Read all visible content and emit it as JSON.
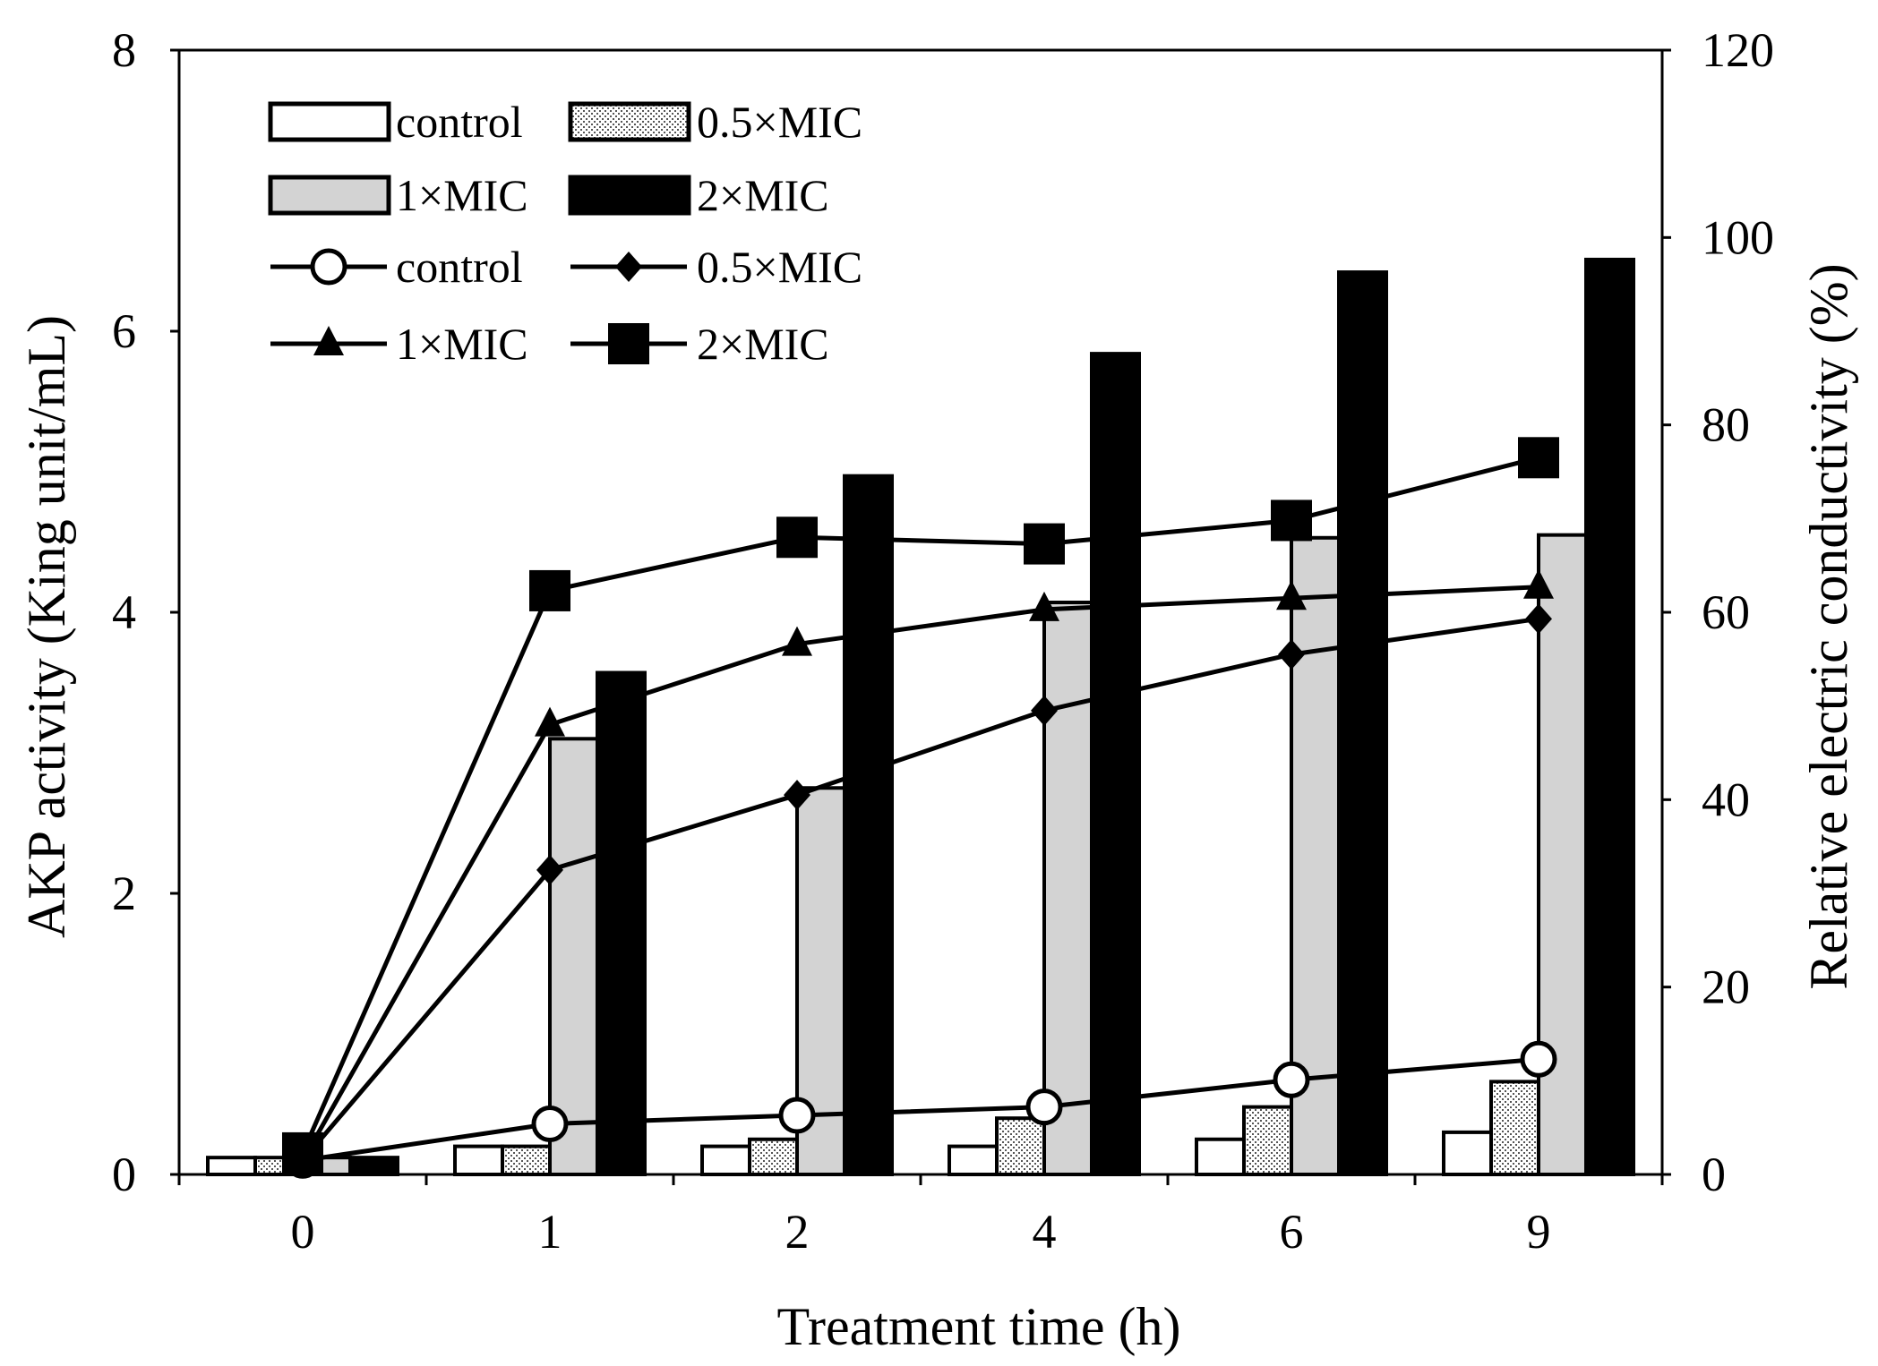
{
  "chart_data": {
    "type": "bar+line",
    "x_title": "Treatment time (h)",
    "y_left_title": "AKP activity (King unit/mL)",
    "y_right_title": "Relative electric conductivity (%)",
    "categories": [
      "0",
      "1",
      "2",
      "4",
      "6",
      "9"
    ],
    "y_left": {
      "range": [
        0,
        8
      ],
      "ticks": [
        "0",
        "2",
        "4",
        "6",
        "8"
      ]
    },
    "y_right": {
      "range": [
        0,
        120
      ],
      "ticks": [
        "0",
        "20",
        "40",
        "60",
        "80",
        "100",
        "120"
      ]
    },
    "bar_series": [
      {
        "name": "control",
        "fill": "white",
        "values": [
          0.12,
          0.2,
          0.2,
          0.2,
          0.25,
          0.3
        ]
      },
      {
        "name": "0.5×MIC",
        "fill": "dotted",
        "values": [
          0.12,
          0.2,
          0.25,
          0.4,
          0.48,
          0.66
        ]
      },
      {
        "name": "1×MIC",
        "fill": "#d3d3d3",
        "values": [
          0.12,
          3.1,
          2.75,
          4.07,
          4.53,
          4.55
        ]
      },
      {
        "name": "2×MIC",
        "fill": "#000000",
        "values": [
          0.12,
          3.57,
          4.97,
          5.84,
          6.42,
          6.51
        ]
      }
    ],
    "line_series": [
      {
        "name": "control",
        "marker": "circle",
        "values": [
          1.5,
          5.4,
          6.3,
          7.2,
          10.1,
          12.3
        ]
      },
      {
        "name": "0.5×MIC",
        "marker": "diamond",
        "values": [
          1.5,
          32.5,
          40.5,
          49.5,
          55.5,
          59.3
        ]
      },
      {
        "name": "1×MIC",
        "marker": "triangle",
        "values": [
          1.5,
          48.0,
          56.6,
          60.3,
          61.5,
          62.7
        ]
      },
      {
        "name": "2×MIC",
        "marker": "square",
        "values": [
          2.3,
          62.3,
          68.0,
          67.3,
          69.8,
          76.5
        ]
      }
    ],
    "legend": {
      "position": "top-left",
      "bar_labels": [
        "control",
        "0.5×MIC",
        "1×MIC",
        "2×MIC"
      ],
      "line_labels": [
        "control",
        "0.5×MIC",
        "1×MIC",
        "2×MIC"
      ]
    }
  }
}
